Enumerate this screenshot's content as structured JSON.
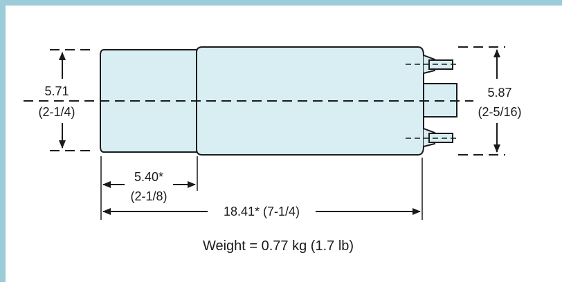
{
  "colors": {
    "frame": "#9cccd8",
    "body_fill": "#d8eef3",
    "ink": "#1a1a1a"
  },
  "dimensions": {
    "left_height": {
      "value": "5.71",
      "fraction": "(2-1/4)"
    },
    "right_height": {
      "value": "5.87",
      "fraction": "(2-5/16)"
    },
    "cap_length": {
      "value": "5.40*",
      "fraction": "(2-1/8)"
    },
    "overall_length": {
      "label": "18.41* (7-1/4)"
    }
  },
  "weight": {
    "label": "Weight = 0.77 kg (1.7 lb)"
  }
}
